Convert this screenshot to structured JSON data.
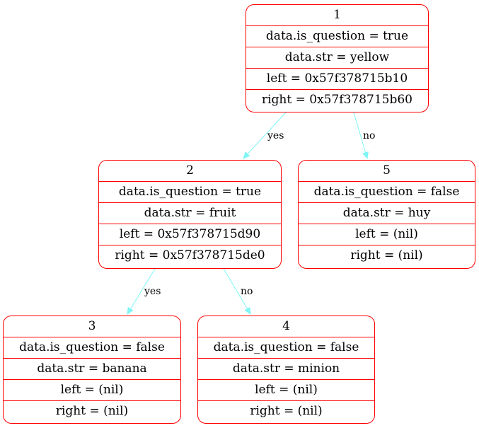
{
  "colors": {
    "node_border": "#ff0000",
    "edge": "#7ff5f5",
    "text": "#000000"
  },
  "nodes": [
    {
      "id": "1",
      "is_question": "data.is_question = true",
      "str": "data.str = yellow",
      "left": "left = 0x57f378715b10",
      "right": "right = 0x57f378715b60"
    },
    {
      "id": "2",
      "is_question": "data.is_question = true",
      "str": "data.str = fruit",
      "left": "left = 0x57f378715d90",
      "right": "right = 0x57f378715de0"
    },
    {
      "id": "5",
      "is_question": "data.is_question = false",
      "str": "data.str = huy",
      "left": "left = (nil)",
      "right": "right = (nil)"
    },
    {
      "id": "3",
      "is_question": "data.is_question = false",
      "str": "data.str = banana",
      "left": "left = (nil)",
      "right": "right = (nil)"
    },
    {
      "id": "4",
      "is_question": "data.is_question = false",
      "str": "data.str = minion",
      "left": "left = (nil)",
      "right": "right = (nil)"
    }
  ],
  "edges": [
    {
      "from": "1",
      "to": "2",
      "label": "yes"
    },
    {
      "from": "1",
      "to": "5",
      "label": "no"
    },
    {
      "from": "2",
      "to": "3",
      "label": "yes"
    },
    {
      "from": "2",
      "to": "4",
      "label": "no"
    }
  ]
}
